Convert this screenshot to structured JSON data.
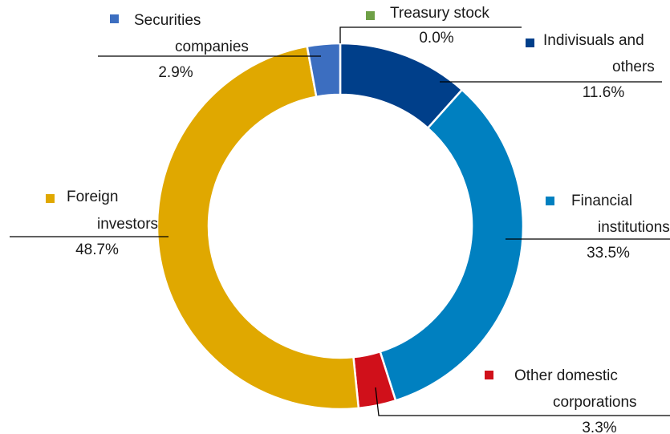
{
  "chart_data": {
    "type": "pie",
    "style": "donut",
    "start_angle_deg": 0,
    "direction": "clockwise",
    "slices": [
      {
        "label": "Treasury stock",
        "label_lines": [
          "Treasury stock"
        ],
        "value": 0.0,
        "value_label": "0.0%",
        "color": "#6ea046"
      },
      {
        "label": "Indivisuals and others",
        "label_lines": [
          "Indivisuals and",
          "others"
        ],
        "value": 11.6,
        "value_label": "11.6%",
        "color": "#003f8a"
      },
      {
        "label": "Financial institutions",
        "label_lines": [
          "Financial",
          "institutions"
        ],
        "value": 33.5,
        "value_label": "33.5%",
        "color": "#0080c0"
      },
      {
        "label": "Other domestic corporations",
        "label_lines": [
          "Other domestic",
          "corporations"
        ],
        "value": 3.3,
        "value_label": "3.3%",
        "color": "#d0101a"
      },
      {
        "label": "Foreign investors",
        "label_lines": [
          "Foreign",
          "investors"
        ],
        "value": 48.7,
        "value_label": "48.7%",
        "color": "#e0a800"
      },
      {
        "label": "Securities companies",
        "label_lines": [
          "Securities",
          "companies"
        ],
        "value": 2.9,
        "value_label": "2.9%",
        "color": "#3c6ec0"
      }
    ]
  }
}
